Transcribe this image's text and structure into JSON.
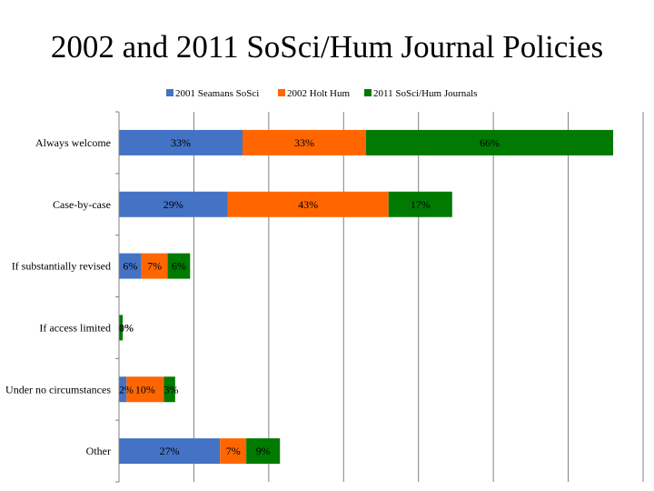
{
  "title": "2002 and 2011 SoSci/Hum Journal Policies",
  "chart_data": {
    "type": "bar",
    "orientation": "horizontal",
    "stacked": true,
    "title": "2002 and 2011 SoSci/Hum Journal Policies",
    "categories": [
      "Always welcome",
      "Case-by-case",
      "If substantially revised",
      "If access limited",
      "Under no circumstances",
      "Other"
    ],
    "series": [
      {
        "name": "2001 Seamans SoSci",
        "color": "#4472C4",
        "values": [
          33,
          29,
          6,
          0,
          2,
          27
        ],
        "labels": [
          "33%",
          "29%",
          "6%",
          "0%",
          "2%",
          "27%"
        ]
      },
      {
        "name": "2002 Holt Hum",
        "color": "#FF6600",
        "values": [
          33,
          43,
          7,
          0,
          10,
          7
        ],
        "labels": [
          "33%",
          "43%",
          "7%",
          "",
          "10%",
          "7%"
        ]
      },
      {
        "name": "2011 SoSci/Hum Journals",
        "color": "#007A00",
        "values": [
          66,
          17,
          6,
          1,
          3,
          9
        ],
        "labels": [
          "66%",
          "17%",
          "6%",
          "1%",
          "3%",
          "9%"
        ]
      }
    ],
    "xlim": [
      0,
      140
    ],
    "grid": true,
    "legend_position": "top"
  }
}
